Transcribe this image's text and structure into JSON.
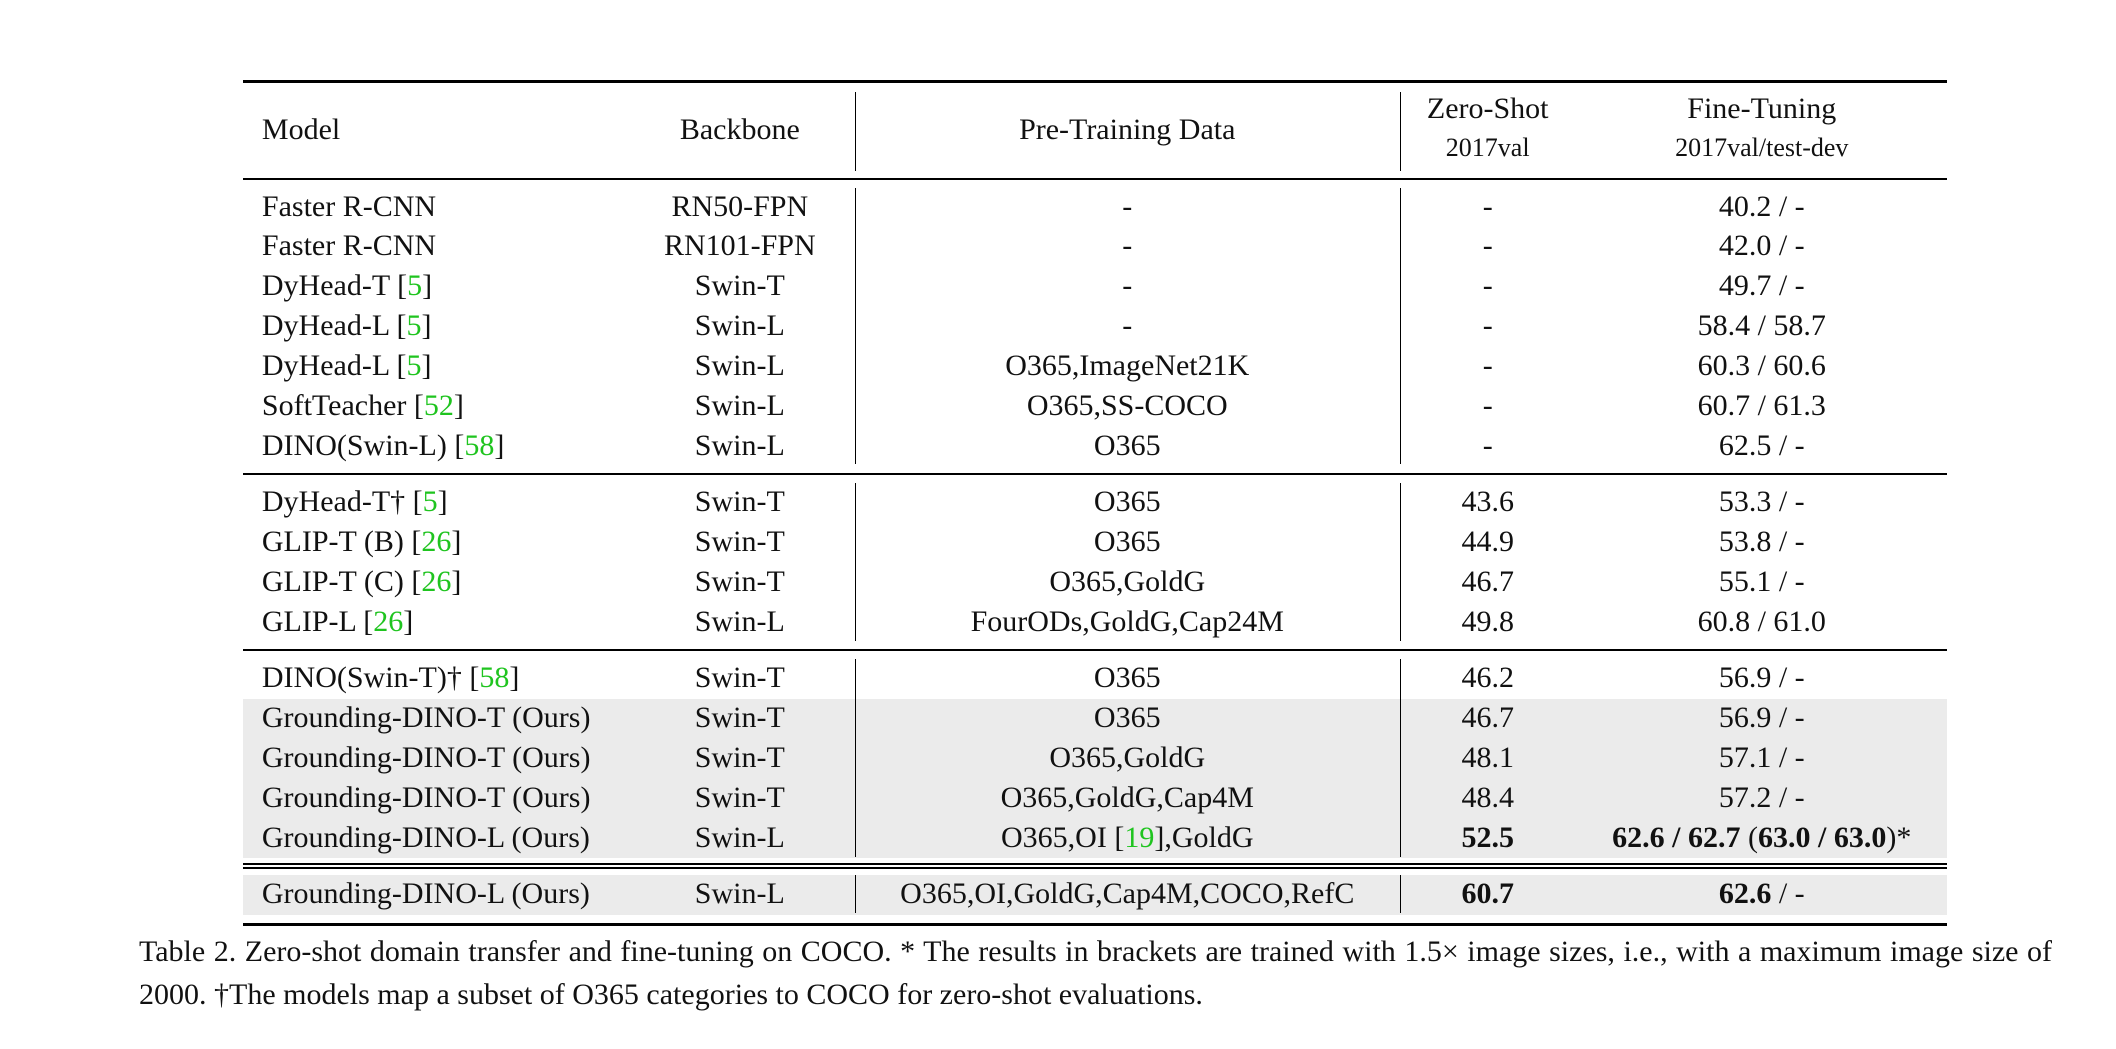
{
  "header": {
    "model": "Model",
    "backbone": "Backbone",
    "pretrain": "Pre-Training Data",
    "zeroshot": [
      "Zero-Shot",
      "2017val"
    ],
    "finetune": [
      "Fine-Tuning",
      "2017val/test-dev"
    ]
  },
  "groups": [
    {
      "rows": [
        {
          "cells": [
            "Faster R-CNN",
            "RN50-FPN",
            "-",
            "-",
            "40.2 / -"
          ]
        },
        {
          "cells": [
            "Faster R-CNN",
            "RN101-FPN",
            "-",
            "-",
            "42.0 / -"
          ]
        },
        {
          "cells": [
            [
              {
                "text": "DyHead-T ["
              },
              {
                "text": "5",
                "style": "cite"
              },
              {
                "text": "]"
              }
            ],
            "Swin-T",
            "-",
            "-",
            "49.7 / -"
          ]
        },
        {
          "cells": [
            [
              {
                "text": "DyHead-L ["
              },
              {
                "text": "5",
                "style": "cite"
              },
              {
                "text": "]"
              }
            ],
            "Swin-L",
            "-",
            "-",
            "58.4 / 58.7"
          ]
        },
        {
          "cells": [
            [
              {
                "text": "DyHead-L ["
              },
              {
                "text": "5",
                "style": "cite"
              },
              {
                "text": "]"
              }
            ],
            "Swin-L",
            "O365,ImageNet21K",
            "-",
            "60.3 / 60.6"
          ]
        },
        {
          "cells": [
            [
              {
                "text": "SoftTeacher ["
              },
              {
                "text": "52",
                "style": "cite"
              },
              {
                "text": "]"
              }
            ],
            "Swin-L",
            "O365,SS-COCO",
            "-",
            "60.7 / 61.3"
          ]
        },
        {
          "cells": [
            [
              {
                "text": "DINO(Swin-L) ["
              },
              {
                "text": "58",
                "style": "cite"
              },
              {
                "text": "]"
              }
            ],
            "Swin-L",
            "O365",
            "-",
            "62.5 / -"
          ]
        }
      ]
    },
    {
      "rows": [
        {
          "cells": [
            [
              {
                "text": "DyHead-T† ["
              },
              {
                "text": "5",
                "style": "cite"
              },
              {
                "text": "]"
              }
            ],
            "Swin-T",
            "O365",
            "43.6",
            "53.3 / -"
          ]
        },
        {
          "cells": [
            [
              {
                "text": "GLIP-T (B) ["
              },
              {
                "text": "26",
                "style": "cite"
              },
              {
                "text": "]"
              }
            ],
            "Swin-T",
            "O365",
            "44.9",
            "53.8 / -"
          ]
        },
        {
          "cells": [
            [
              {
                "text": "GLIP-T (C) ["
              },
              {
                "text": "26",
                "style": "cite"
              },
              {
                "text": "]"
              }
            ],
            "Swin-T",
            "O365,GoldG",
            "46.7",
            "55.1 / -"
          ]
        },
        {
          "cells": [
            [
              {
                "text": "GLIP-L ["
              },
              {
                "text": "26",
                "style": "cite"
              },
              {
                "text": "]"
              }
            ],
            "Swin-L",
            "FourODs,GoldG,Cap24M",
            "49.8",
            "60.8 / 61.0"
          ]
        }
      ]
    },
    {
      "rows": [
        {
          "cells": [
            [
              {
                "text": "DINO(Swin-T)† ["
              },
              {
                "text": "58",
                "style": "cite"
              },
              {
                "text": "]"
              }
            ],
            "Swin-T",
            "O365",
            "46.2",
            "56.9 / -"
          ]
        },
        {
          "shaded": true,
          "cells": [
            "Grounding-DINO-T (Ours)",
            "Swin-T",
            "O365",
            "46.7",
            "56.9 / -"
          ]
        },
        {
          "shaded": true,
          "cells": [
            "Grounding-DINO-T (Ours)",
            "Swin-T",
            "O365,GoldG",
            "48.1",
            "57.1 / -"
          ]
        },
        {
          "shaded": true,
          "cells": [
            "Grounding-DINO-T (Ours)",
            "Swin-T",
            "O365,GoldG,Cap4M",
            "48.4",
            "57.2 / -"
          ]
        },
        {
          "shaded": true,
          "cells": [
            "Grounding-DINO-L (Ours)",
            "Swin-L",
            [
              {
                "text": "O365,OI ["
              },
              {
                "text": "19",
                "style": "cite"
              },
              {
                "text": "],GoldG"
              }
            ],
            [
              {
                "text": "52.5",
                "style": "bold"
              }
            ],
            [
              {
                "text": "62.6 / 62.7",
                "style": "bold"
              },
              {
                "text": " ("
              },
              {
                "text": "63.0 / 63.0",
                "style": "bold"
              },
              {
                "text": ")*"
              }
            ]
          ]
        }
      ]
    },
    {
      "rows": [
        {
          "shaded": true,
          "cells": [
            "Grounding-DINO-L (Ours)",
            "Swin-L",
            "O365,OI,GoldG,Cap4M,COCO,RefC",
            [
              {
                "text": "60.7",
                "style": "bold"
              }
            ],
            [
              {
                "text": "62.6",
                "style": "bold"
              },
              {
                "text": " / -"
              }
            ]
          ]
        }
      ]
    }
  ],
  "caption": "Table 2.  Zero-shot domain transfer and fine-tuning on COCO. * The results in brackets are trained with 1.5× image sizes, i.e., with a maximum image size of 2000. †The models map a subset of O365 categories to COCO for zero-shot evaluations."
}
